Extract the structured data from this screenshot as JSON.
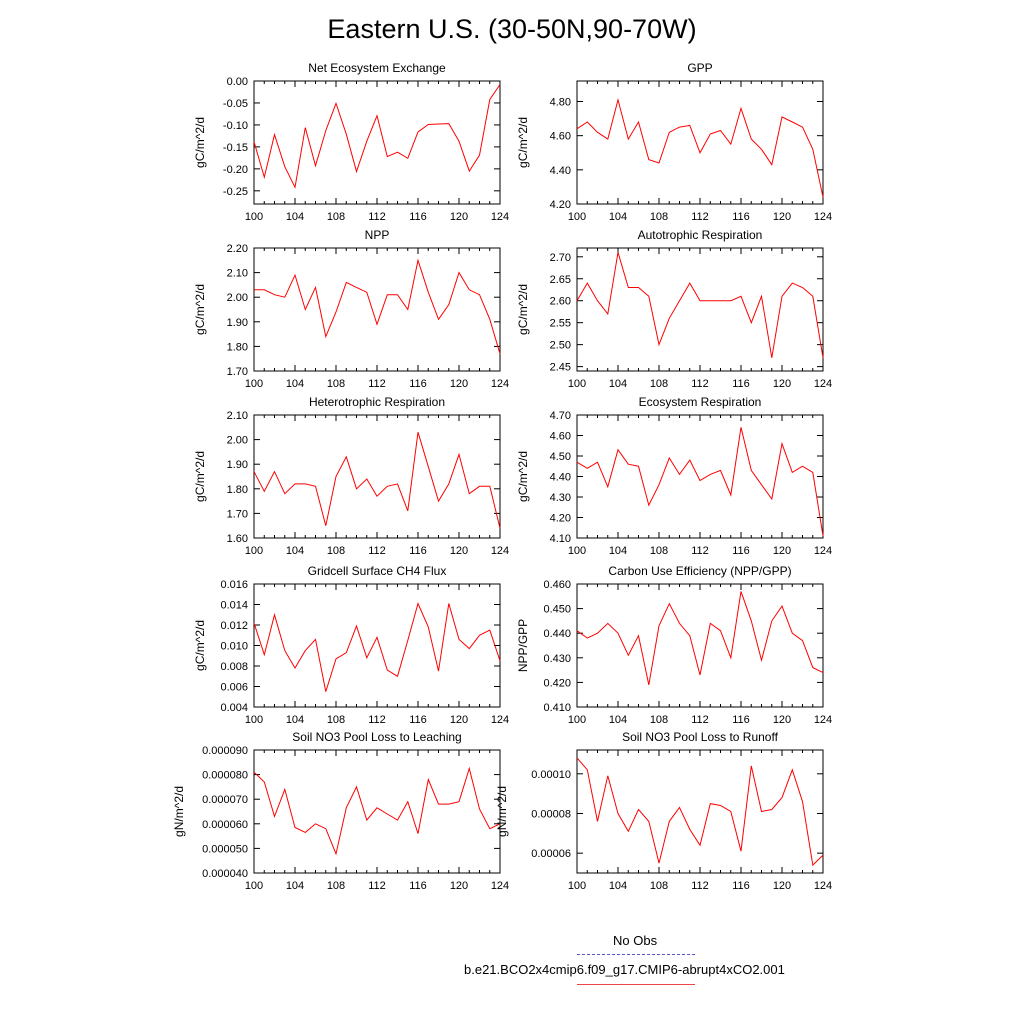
{
  "page": {
    "title": "Eastern U.S. (30-50N,90-70W)"
  },
  "legend": {
    "entries": [
      {
        "label": "No Obs",
        "color": "#5555cc",
        "dash": true
      },
      {
        "label": "b.e21.BCO2x4cmip6.f09_g17.CMIP6-abrupt4xCO2.001",
        "color": "#ee4444",
        "dash": false
      }
    ]
  },
  "series_color": "#ff0000",
  "chart_data": [
    {
      "type": "line",
      "title": "Net Ecosystem Exchange",
      "ylabel": "gC/m^2/d",
      "xlim": [
        100,
        124
      ],
      "ylim": [
        -0.28,
        0.0
      ],
      "yticks": [
        0.0,
        -0.05,
        -0.1,
        -0.15,
        -0.2,
        -0.25
      ],
      "ytick_labels": [
        "0.00",
        "-0.05",
        "-0.10",
        "-0.15",
        "-0.20",
        "-0.25"
      ],
      "xticks": [
        100,
        104,
        108,
        112,
        116,
        120,
        124
      ],
      "x": [
        100,
        101,
        102,
        103,
        104,
        105,
        106,
        107,
        108,
        109,
        110,
        111,
        112,
        113,
        114,
        115,
        116,
        117,
        118,
        119,
        120,
        121,
        122,
        123,
        124
      ],
      "values": [
        -0.138,
        -0.219,
        -0.122,
        -0.195,
        -0.242,
        -0.106,
        -0.193,
        -0.113,
        -0.051,
        -0.121,
        -0.206,
        -0.137,
        -0.079,
        -0.172,
        -0.162,
        -0.176,
        -0.116,
        -0.099,
        -0.098,
        -0.097,
        -0.137,
        -0.205,
        -0.169,
        -0.042,
        -0.008
      ]
    },
    {
      "type": "line",
      "title": "GPP",
      "ylabel": "gC/m^2/d",
      "xlim": [
        100,
        124
      ],
      "ylim": [
        4.2,
        4.92
      ],
      "yticks": [
        4.2,
        4.4,
        4.6,
        4.8
      ],
      "ytick_labels": [
        "4.20",
        "4.40",
        "4.60",
        "4.80"
      ],
      "xticks": [
        100,
        104,
        108,
        112,
        116,
        120,
        124
      ],
      "x": [
        100,
        101,
        102,
        103,
        104,
        105,
        106,
        107,
        108,
        109,
        110,
        111,
        112,
        113,
        114,
        115,
        116,
        117,
        118,
        119,
        120,
        121,
        122,
        123,
        124
      ],
      "values": [
        4.64,
        4.68,
        4.62,
        4.58,
        4.81,
        4.58,
        4.68,
        4.46,
        4.44,
        4.62,
        4.65,
        4.66,
        4.5,
        4.61,
        4.63,
        4.55,
        4.76,
        4.58,
        4.52,
        4.43,
        4.71,
        4.68,
        4.65,
        4.52,
        4.24
      ]
    },
    {
      "type": "line",
      "title": "NPP",
      "ylabel": "gC/m^2/d",
      "xlim": [
        100,
        124
      ],
      "ylim": [
        1.7,
        2.2
      ],
      "yticks": [
        1.7,
        1.8,
        1.9,
        2.0,
        2.1,
        2.2
      ],
      "ytick_labels": [
        "1.70",
        "1.80",
        "1.90",
        "2.00",
        "2.10",
        "2.20"
      ],
      "xticks": [
        100,
        104,
        108,
        112,
        116,
        120,
        124
      ],
      "x": [
        100,
        101,
        102,
        103,
        104,
        105,
        106,
        107,
        108,
        109,
        110,
        111,
        112,
        113,
        114,
        115,
        116,
        117,
        118,
        119,
        120,
        121,
        122,
        123,
        124
      ],
      "values": [
        2.03,
        2.03,
        2.01,
        2.0,
        2.09,
        1.95,
        2.04,
        1.84,
        1.94,
        2.06,
        2.04,
        2.02,
        1.89,
        2.01,
        2.01,
        1.95,
        2.15,
        2.02,
        1.91,
        1.97,
        2.1,
        2.03,
        2.01,
        1.91,
        1.77
      ]
    },
    {
      "type": "line",
      "title": "Autotrophic Respiration",
      "ylabel": "gC/m^2/d",
      "xlim": [
        100,
        124
      ],
      "ylim": [
        2.44,
        2.72
      ],
      "yticks": [
        2.45,
        2.5,
        2.55,
        2.6,
        2.65,
        2.7
      ],
      "ytick_labels": [
        "2.45",
        "2.50",
        "2.55",
        "2.60",
        "2.65",
        "2.70"
      ],
      "xticks": [
        100,
        104,
        108,
        112,
        116,
        120,
        124
      ],
      "x": [
        100,
        101,
        102,
        103,
        104,
        105,
        106,
        107,
        108,
        109,
        110,
        111,
        112,
        113,
        114,
        115,
        116,
        117,
        118,
        119,
        120,
        121,
        122,
        123,
        124
      ],
      "values": [
        2.6,
        2.64,
        2.6,
        2.57,
        2.71,
        2.63,
        2.63,
        2.61,
        2.5,
        2.56,
        2.6,
        2.64,
        2.6,
        2.6,
        2.6,
        2.6,
        2.61,
        2.55,
        2.61,
        2.47,
        2.61,
        2.64,
        2.63,
        2.61,
        2.47
      ]
    },
    {
      "type": "line",
      "title": "Heterotrophic Respiration",
      "ylabel": "gC/m^2/d",
      "xlim": [
        100,
        124
      ],
      "ylim": [
        1.6,
        2.1
      ],
      "yticks": [
        1.6,
        1.7,
        1.8,
        1.9,
        2.0,
        2.1
      ],
      "ytick_labels": [
        "1.60",
        "1.70",
        "1.80",
        "1.90",
        "2.00",
        "2.10"
      ],
      "xticks": [
        100,
        104,
        108,
        112,
        116,
        120,
        124
      ],
      "x": [
        100,
        101,
        102,
        103,
        104,
        105,
        106,
        107,
        108,
        109,
        110,
        111,
        112,
        113,
        114,
        115,
        116,
        117,
        118,
        119,
        120,
        121,
        122,
        123,
        124
      ],
      "values": [
        1.87,
        1.79,
        1.87,
        1.78,
        1.82,
        1.82,
        1.81,
        1.65,
        1.85,
        1.93,
        1.8,
        1.84,
        1.77,
        1.81,
        1.82,
        1.71,
        2.03,
        1.89,
        1.75,
        1.82,
        1.94,
        1.78,
        1.81,
        1.81,
        1.64
      ]
    },
    {
      "type": "line",
      "title": "Ecosystem Respiration",
      "ylabel": "gC/m^2/d",
      "xlim": [
        100,
        124
      ],
      "ylim": [
        4.1,
        4.7
      ],
      "yticks": [
        4.1,
        4.2,
        4.3,
        4.4,
        4.5,
        4.6,
        4.7
      ],
      "ytick_labels": [
        "4.10",
        "4.20",
        "4.30",
        "4.40",
        "4.50",
        "4.60",
        "4.70"
      ],
      "xticks": [
        100,
        104,
        108,
        112,
        116,
        120,
        124
      ],
      "x": [
        100,
        101,
        102,
        103,
        104,
        105,
        106,
        107,
        108,
        109,
        110,
        111,
        112,
        113,
        114,
        115,
        116,
        117,
        118,
        119,
        120,
        121,
        122,
        123,
        124
      ],
      "values": [
        4.47,
        4.44,
        4.47,
        4.35,
        4.53,
        4.46,
        4.45,
        4.26,
        4.36,
        4.49,
        4.41,
        4.48,
        4.38,
        4.41,
        4.43,
        4.31,
        4.64,
        4.43,
        4.36,
        4.29,
        4.56,
        4.42,
        4.45,
        4.42,
        4.11
      ]
    },
    {
      "type": "line",
      "title": "Gridcell Surface CH4 Flux",
      "ylabel": "gC/m^2/d",
      "xlim": [
        100,
        124
      ],
      "ylim": [
        0.004,
        0.016
      ],
      "yticks": [
        0.004,
        0.006,
        0.008,
        0.01,
        0.012,
        0.014,
        0.016
      ],
      "ytick_labels": [
        "0.004",
        "0.006",
        "0.008",
        "0.010",
        "0.012",
        "0.014",
        "0.016"
      ],
      "xticks": [
        100,
        104,
        108,
        112,
        116,
        120,
        124
      ],
      "x": [
        100,
        101,
        102,
        103,
        104,
        105,
        106,
        107,
        108,
        109,
        110,
        111,
        112,
        113,
        114,
        115,
        116,
        117,
        118,
        119,
        120,
        121,
        122,
        123,
        124
      ],
      "values": [
        0.0122,
        0.0091,
        0.013,
        0.0095,
        0.0078,
        0.0095,
        0.0106,
        0.0055,
        0.0087,
        0.0093,
        0.0119,
        0.0088,
        0.0108,
        0.0076,
        0.007,
        0.0105,
        0.0141,
        0.0118,
        0.0075,
        0.0141,
        0.0106,
        0.0097,
        0.011,
        0.0115,
        0.0085
      ]
    },
    {
      "type": "line",
      "title": "Carbon Use Efficiency (NPP/GPP)",
      "ylabel": "NPP/GPP",
      "xlim": [
        100,
        124
      ],
      "ylim": [
        0.41,
        0.46
      ],
      "yticks": [
        0.41,
        0.42,
        0.43,
        0.44,
        0.45,
        0.46
      ],
      "ytick_labels": [
        "0.410",
        "0.420",
        "0.430",
        "0.440",
        "0.450",
        "0.460"
      ],
      "xticks": [
        100,
        104,
        108,
        112,
        116,
        120,
        124
      ],
      "x": [
        100,
        101,
        102,
        103,
        104,
        105,
        106,
        107,
        108,
        109,
        110,
        111,
        112,
        113,
        114,
        115,
        116,
        117,
        118,
        119,
        120,
        121,
        122,
        123,
        124
      ],
      "values": [
        0.441,
        0.438,
        0.44,
        0.444,
        0.44,
        0.431,
        0.439,
        0.419,
        0.443,
        0.452,
        0.444,
        0.439,
        0.423,
        0.444,
        0.441,
        0.43,
        0.457,
        0.445,
        0.429,
        0.445,
        0.451,
        0.44,
        0.437,
        0.426,
        0.424
      ]
    },
    {
      "type": "line",
      "title": "Soil NO3 Pool Loss to Leaching",
      "ylabel": "gN/m^2/d",
      "xlim": [
        100,
        124
      ],
      "ylim": [
        4e-05,
        9e-05
      ],
      "yticks": [
        4e-05,
        5e-05,
        6e-05,
        7e-05,
        8e-05,
        9e-05
      ],
      "ytick_labels": [
        "0.000040",
        "0.000050",
        "0.000060",
        "0.000070",
        "0.000080",
        "0.000090"
      ],
      "xticks": [
        100,
        104,
        108,
        112,
        116,
        120,
        124
      ],
      "x": [
        100,
        101,
        102,
        103,
        104,
        105,
        106,
        107,
        108,
        109,
        110,
        111,
        112,
        113,
        114,
        115,
        116,
        117,
        118,
        119,
        120,
        121,
        122,
        123,
        124
      ],
      "values": [
        8.1e-05,
        7.7e-05,
        6.3e-05,
        7.4e-05,
        5.85e-05,
        5.65e-05,
        6e-05,
        5.8e-05,
        4.78e-05,
        6.65e-05,
        7.5e-05,
        6.15e-05,
        6.65e-05,
        6.4e-05,
        6.15e-05,
        6.9e-05,
        5.6e-05,
        7.8e-05,
        6.8e-05,
        6.8e-05,
        6.9e-05,
        8.25e-05,
        6.6e-05,
        5.8e-05,
        6e-05
      ]
    },
    {
      "type": "line",
      "title": "Soil NO3 Pool Loss to Runoff",
      "ylabel": "gN/m^2/d",
      "xlim": [
        100,
        124
      ],
      "ylim": [
        5e-05,
        0.000112
      ],
      "yticks": [
        6e-05,
        8e-05,
        0.0001
      ],
      "ytick_labels": [
        "0.00006",
        "0.00008",
        "0.00010"
      ],
      "xticks": [
        100,
        104,
        108,
        112,
        116,
        120,
        124
      ],
      "x": [
        100,
        101,
        102,
        103,
        104,
        105,
        106,
        107,
        108,
        109,
        110,
        111,
        112,
        113,
        114,
        115,
        116,
        117,
        118,
        119,
        120,
        121,
        122,
        123,
        124
      ],
      "values": [
        0.000108,
        0.000102,
        7.6e-05,
        9.9e-05,
        8e-05,
        7.1e-05,
        8.2e-05,
        7.6e-05,
        5.5e-05,
        7.6e-05,
        8.3e-05,
        7.2e-05,
        6.4e-05,
        8.5e-05,
        8.4e-05,
        8.1e-05,
        6.1e-05,
        0.000104,
        8.1e-05,
        8.2e-05,
        8.8e-05,
        0.000102,
        8.6e-05,
        5.4e-05,
        5.9e-05
      ]
    }
  ]
}
